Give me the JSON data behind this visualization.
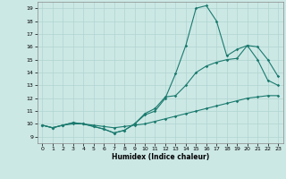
{
  "xlabel": "Humidex (Indice chaleur)",
  "x_ticks": [
    0,
    1,
    2,
    3,
    4,
    5,
    6,
    7,
    8,
    9,
    10,
    11,
    12,
    13,
    14,
    15,
    16,
    17,
    18,
    19,
    20,
    21,
    22,
    23
  ],
  "y_ticks": [
    9,
    10,
    11,
    12,
    13,
    14,
    15,
    16,
    17,
    18,
    19
  ],
  "xlim": [
    -0.5,
    23.5
  ],
  "ylim": [
    8.5,
    19.5
  ],
  "bg_color": "#cce8e5",
  "line_color": "#1a7a6e",
  "line1_x": [
    0,
    1,
    2,
    3,
    4,
    5,
    6,
    7,
    8,
    9,
    10,
    11,
    12,
    13,
    14,
    15,
    16,
    17,
    18,
    19,
    20,
    21,
    22,
    23
  ],
  "line1_y": [
    9.9,
    9.7,
    9.9,
    10.1,
    10.0,
    9.8,
    9.6,
    9.3,
    9.5,
    10.0,
    10.7,
    11.0,
    12.0,
    13.9,
    16.1,
    19.0,
    19.2,
    18.0,
    15.3,
    15.8,
    16.1,
    15.0,
    13.4,
    13.0
  ],
  "line2_x": [
    0,
    1,
    2,
    3,
    4,
    5,
    6,
    7,
    8,
    9,
    10,
    11,
    12,
    13,
    14,
    15,
    16,
    17,
    18,
    19,
    20,
    21,
    22,
    23
  ],
  "line2_y": [
    9.9,
    9.7,
    9.9,
    10.1,
    10.0,
    9.8,
    9.6,
    9.3,
    9.5,
    10.0,
    10.8,
    11.2,
    12.1,
    12.2,
    13.0,
    14.0,
    14.5,
    14.8,
    15.0,
    15.1,
    16.1,
    16.0,
    15.0,
    13.7
  ],
  "line3_x": [
    0,
    1,
    2,
    3,
    4,
    5,
    6,
    7,
    8,
    9,
    10,
    11,
    12,
    13,
    14,
    15,
    16,
    17,
    18,
    19,
    20,
    21,
    22,
    23
  ],
  "line3_y": [
    9.9,
    9.7,
    9.9,
    10.0,
    10.0,
    9.9,
    9.8,
    9.7,
    9.8,
    9.9,
    10.0,
    10.2,
    10.4,
    10.6,
    10.8,
    11.0,
    11.2,
    11.4,
    11.6,
    11.8,
    12.0,
    12.1,
    12.2,
    12.2
  ]
}
